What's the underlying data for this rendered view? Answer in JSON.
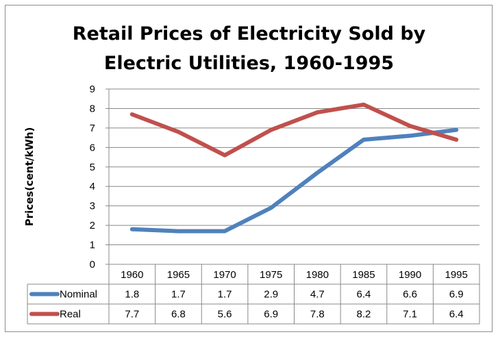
{
  "chart_data": {
    "type": "line",
    "title_lines": [
      "Retail Prices of Electricity Sold by",
      "Electric Utilities, 1960-1995"
    ],
    "ylabel": "Prices(cent/kWh)",
    "xlabel": "",
    "ylim": [
      0,
      9
    ],
    "yticks": [
      "0",
      "1",
      "2",
      "3",
      "4",
      "5",
      "6",
      "7",
      "8",
      "9"
    ],
    "grid": true,
    "legend": "data-table",
    "categories": [
      "1960",
      "1965",
      "1970",
      "1975",
      "1980",
      "1985",
      "1990",
      "1995"
    ],
    "series": [
      {
        "name": "Nominal",
        "color": "#4f81bd",
        "values": [
          1.8,
          1.7,
          1.7,
          2.9,
          4.7,
          6.4,
          6.6,
          6.9
        ]
      },
      {
        "name": "Real",
        "color": "#c0504d",
        "values": [
          7.7,
          6.8,
          5.6,
          6.9,
          7.8,
          8.2,
          7.1,
          6.4
        ]
      }
    ]
  }
}
